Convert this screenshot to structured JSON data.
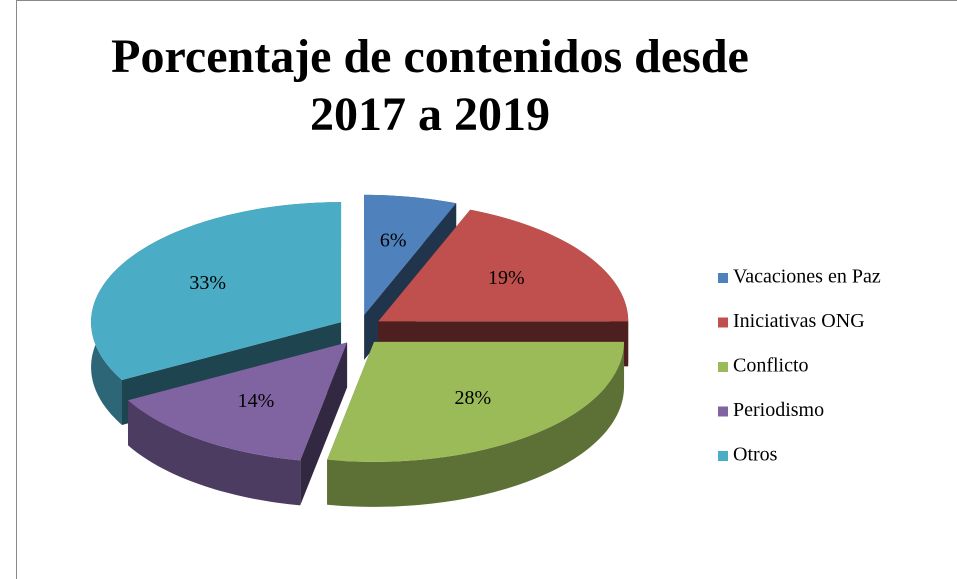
{
  "chart_data": {
    "type": "pie",
    "title": "Porcentaje de contenidos desde 2017 a 2019",
    "categories": [
      "Vacaciones en Paz",
      "Iniciativas ONG",
      "Conflicto",
      "Periodismo",
      "Otros"
    ],
    "values": [
      6,
      19,
      28,
      14,
      33
    ],
    "value_labels": [
      "6%",
      "19%",
      "28%",
      "14%",
      "33%"
    ],
    "colors": [
      "#4f81bd",
      "#c0504d",
      "#9bbb59",
      "#8064a2",
      "#4bacc6"
    ],
    "legend": "right"
  }
}
